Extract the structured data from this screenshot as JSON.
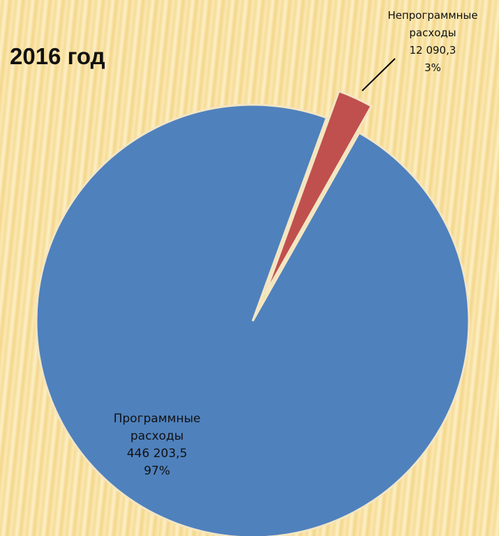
{
  "chart_data": {
    "type": "pie",
    "title": "2016 год",
    "categories": [
      "Программные расходы",
      "Непрограммные расходы"
    ],
    "values": [
      446203.5,
      12090.3
    ],
    "value_labels": [
      "446 203,5",
      "12 090,3"
    ],
    "percents": [
      97,
      3
    ],
    "percent_labels": [
      "97%",
      "3%"
    ],
    "colors": [
      "#4f81bd",
      "#c0504d"
    ]
  }
}
